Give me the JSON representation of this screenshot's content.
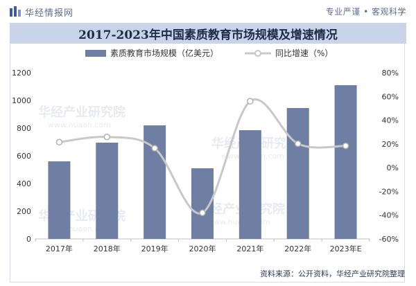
{
  "header": {
    "brand_name": "华经情报网",
    "slogan": "专业严谨 • 客观科学"
  },
  "footer": {
    "source_text": "资料来源：公开资料，华经产业研究院整理"
  },
  "watermark": {
    "text_cn": "华经产业研究院",
    "text_en": "www.huaon.com"
  },
  "colors": {
    "bar": "#6e7fa3",
    "line": "#c8c8c8",
    "marker_fill": "#ffffff",
    "title_bg": "#c9d4ea",
    "brand": "#5c6f8f"
  },
  "chart_data": {
    "type": "bar",
    "title": "2017-2023年中国素质教育市场规模及增速情况",
    "categories": [
      "2017年",
      "2018年",
      "2019年",
      "2020年",
      "2021年",
      "2022年",
      "2023年E"
    ],
    "series": [
      {
        "name": "素质教育市场规模（亿美元）",
        "type": "bar",
        "axis": "left",
        "values": [
          560,
          695,
          820,
          510,
          785,
          945,
          1110
        ]
      },
      {
        "name": "同比增速（%）",
        "type": "line",
        "axis": "right",
        "values": [
          21.5,
          25.9,
          16.4,
          -38.0,
          56.0,
          20.2,
          18.4
        ]
      }
    ],
    "y_left": {
      "min": 0,
      "max": 1200,
      "ticks": [
        0,
        200,
        400,
        600,
        800,
        1000,
        1200
      ]
    },
    "y_right": {
      "min": -60,
      "max": 80,
      "ticks": [
        -60,
        -40,
        -20,
        0,
        20,
        40,
        60,
        80
      ],
      "tick_labels": [
        "-60%",
        "-40%",
        "-20%",
        "0%",
        "20%",
        "40%",
        "60%",
        "80%"
      ]
    },
    "legend": [
      "素质教育市场规模（亿美元）",
      "同比增速（%）"
    ],
    "legend_position": "top-center",
    "grid": false
  }
}
